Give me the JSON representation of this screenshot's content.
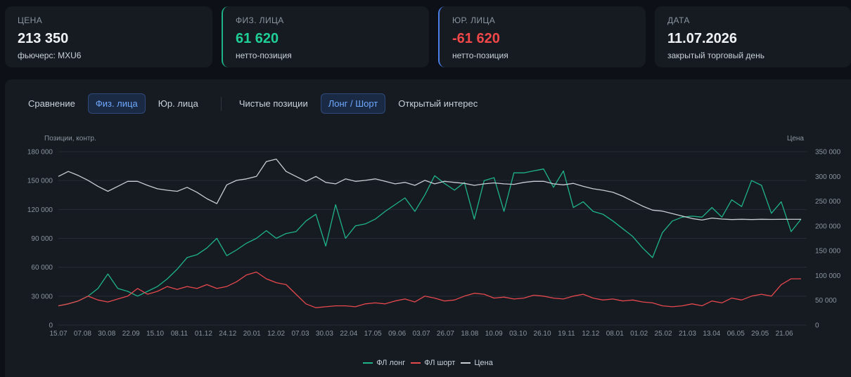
{
  "cards": [
    {
      "label": "ЦЕНА",
      "value": "213 350",
      "sub": "фьючерс: MXU6"
    },
    {
      "label": "ФИЗ. ЛИЦА",
      "value": "61 620",
      "sub": "нетто-позиция"
    },
    {
      "label": "ЮР. ЛИЦА",
      "value": "-61 620",
      "sub": "нетто-позиция"
    },
    {
      "label": "ДАТА",
      "value": "11.07.2026",
      "sub": "закрытый торговый день"
    }
  ],
  "tabs": {
    "group1": [
      "Сравнение",
      "Физ. лица",
      "Юр. лица"
    ],
    "group2": [
      "Чистые позиции",
      "Лонг / Шорт",
      "Открытый интерес"
    ],
    "active1": "Физ. лица",
    "active2": "Лонг / Шорт"
  },
  "colors": {
    "long": "#1fb389",
    "short": "#e5484d",
    "price": "#c9ccd3",
    "grid": "#262c36"
  },
  "chart_data": {
    "type": "line",
    "ylabel_left": "Позиции, контр.",
    "ylabel_right": "Цена",
    "ylim_left": [
      0,
      180000
    ],
    "yticks_left": [
      "0",
      "30 000",
      "60 000",
      "90 000",
      "120 000",
      "150 000",
      "180 000"
    ],
    "ylim_right": [
      0,
      350000
    ],
    "yticks_right": [
      "0",
      "50 000",
      "100 000",
      "150 000",
      "200 000",
      "250 000",
      "300 000",
      "350 000"
    ],
    "x_ticks": [
      "15.07",
      "07.08",
      "30.08",
      "22.09",
      "15.10",
      "08.11",
      "01.12",
      "24.12",
      "20.01",
      "12.02",
      "07.03",
      "30.03",
      "22.04",
      "17.05",
      "09.06",
      "03.07",
      "26.07",
      "18.08",
      "10.09",
      "03.10",
      "26.10",
      "19.11",
      "12.12",
      "08.01",
      "01.02",
      "25.02",
      "21.03",
      "13.04",
      "06.05",
      "29.05",
      "21.06"
    ],
    "grid": true,
    "legend": "bottom-center",
    "series": [
      {
        "name": "ФЛ лонг",
        "values": [
          20000,
          22000,
          25000,
          30000,
          38000,
          53000,
          38000,
          35000,
          30000,
          35000,
          40000,
          48000,
          58000,
          70000,
          73000,
          80000,
          90000,
          72000,
          78000,
          85000,
          90000,
          98000,
          90000,
          95000,
          97000,
          108000,
          115000,
          82000,
          125000,
          90000,
          103000,
          105000,
          110000,
          118000,
          125000,
          132000,
          118000,
          135000,
          155000,
          147000,
          140000,
          148000,
          110000,
          150000,
          153000,
          118000,
          158000,
          158000,
          160000,
          162000,
          143000,
          160000,
          122000,
          128000,
          118000,
          115000,
          108000,
          100000,
          92000,
          80000,
          70000,
          96000,
          108000,
          112000,
          113000,
          112000,
          122000,
          112000,
          130000,
          123000,
          150000,
          145000,
          116000,
          128000,
          97000,
          110000
        ]
      },
      {
        "name": "ФЛ шорт",
        "values": [
          20000,
          22000,
          25000,
          30000,
          26000,
          24000,
          27000,
          30000,
          38000,
          32000,
          35000,
          40000,
          37000,
          40000,
          38000,
          42000,
          38000,
          40000,
          45000,
          52000,
          55000,
          48000,
          44000,
          42000,
          32000,
          22000,
          18000,
          19000,
          20000,
          20000,
          19000,
          22000,
          23000,
          22000,
          25000,
          27000,
          24000,
          30000,
          28000,
          25000,
          26000,
          30000,
          33000,
          32000,
          28000,
          29000,
          27000,
          28000,
          31000,
          30000,
          28000,
          27000,
          30000,
          32000,
          28000,
          26000,
          27000,
          25000,
          26000,
          24000,
          23000,
          20000,
          19000,
          20000,
          22000,
          20000,
          25000,
          23000,
          28000,
          26000,
          30000,
          32000,
          30000,
          42000,
          48000,
          48000
        ]
      },
      {
        "name": "Цена",
        "values": [
          300000,
          310000,
          302000,
          292000,
          280000,
          270000,
          280000,
          290000,
          290000,
          282000,
          275000,
          272000,
          270000,
          278000,
          268000,
          255000,
          245000,
          283000,
          292000,
          295000,
          300000,
          330000,
          335000,
          310000,
          300000,
          290000,
          300000,
          288000,
          285000,
          295000,
          290000,
          292000,
          295000,
          290000,
          285000,
          288000,
          282000,
          292000,
          285000,
          290000,
          288000,
          286000,
          282000,
          285000,
          287000,
          285000,
          284000,
          288000,
          290000,
          290000,
          285000,
          283000,
          286000,
          280000,
          275000,
          272000,
          268000,
          260000,
          250000,
          240000,
          232000,
          230000,
          225000,
          220000,
          215000,
          212000,
          216000,
          214000,
          213000,
          213500,
          213000,
          213500,
          213200,
          213350,
          213400,
          213350
        ]
      }
    ]
  }
}
